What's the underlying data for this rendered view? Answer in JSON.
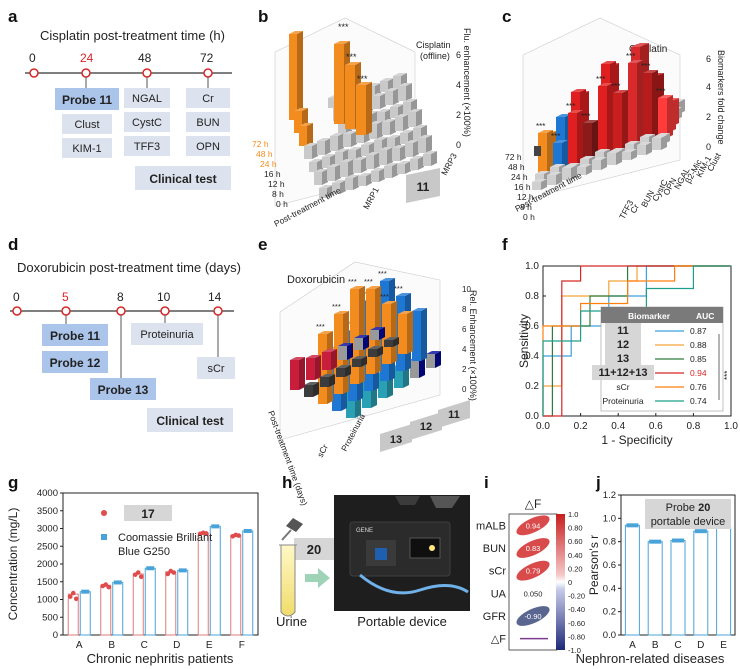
{
  "panel_labels": [
    "a",
    "b",
    "c",
    "d",
    "e",
    "f",
    "g",
    "h",
    "i",
    "j"
  ],
  "panel_a": {
    "title": "Cisplatin post-treatment time (h)",
    "ticks": [
      "0",
      "24",
      "48",
      "72"
    ],
    "columns": [
      [
        "Probe 11",
        "Clust",
        "KIM-1"
      ],
      [
        "NGAL",
        "CystC",
        "TFF3"
      ],
      [
        "Cr",
        "BUN",
        "OPN"
      ]
    ],
    "clinical": "Clinical test"
  },
  "panel_b": {
    "title_lines": [
      "Cisplatin",
      "(offline)"
    ],
    "zlabel": "Flu. enhancement (×100%)",
    "zticks": [
      "0",
      "2",
      "4",
      "6"
    ],
    "ylabel": "Post-treatment time",
    "ytick_labels": [
      "72 h",
      "48 h",
      "24 h",
      "16 h",
      "12 h",
      "8 h",
      "0 h"
    ],
    "x_labels": [
      "MRP1",
      "MRP3"
    ],
    "probe": "11",
    "sig": "***"
  },
  "panel_c": {
    "title": "Cisplatin",
    "zlabel": "Biomarkers fold change",
    "zticks": [
      "0",
      "2",
      "4",
      "6"
    ],
    "ylabel": "Post-treatment time",
    "ytick_labels": [
      "72 h",
      "48 h",
      "24 h",
      "16 h",
      "12 h",
      "8 h",
      "0 h"
    ],
    "markers": [
      "Clust",
      "KIM-1",
      "β2-Mic",
      "NGAL",
      "OPN",
      "CystC",
      "BUN",
      "Cr",
      "TFF3"
    ],
    "sig": "***"
  },
  "panel_d": {
    "title": "Doxorubicin post-treatment time (days)",
    "ticks": [
      "0",
      "5",
      "8",
      "10",
      "14"
    ],
    "boxes": [
      "Probe 11",
      "Probe 12",
      "Probe 13",
      "Proteinuria",
      "sCr"
    ],
    "clinical": "Clinical test"
  },
  "panel_e": {
    "title": "Doxorubicin",
    "zlabel": "Rel. Enhancement (×100%)",
    "zticks": [
      "0",
      "2",
      "4",
      "6",
      "8",
      "10"
    ],
    "ylabel": "Post-treatment time (days)",
    "x_labels": [
      "11",
      "12",
      "13",
      "Proteinuria",
      "sCr"
    ],
    "sig": "***"
  },
  "chart_data": [
    {
      "id": "f",
      "type": "line",
      "title": "",
      "xlabel": "1 - Specificity",
      "ylabel": "Sensitivity",
      "xlim": [
        0,
        1
      ],
      "ylim": [
        0,
        1
      ],
      "xticks": [
        "0.0",
        "0.2",
        "0.4",
        "0.6",
        "0.8",
        "1.0"
      ],
      "yticks": [
        "0.0",
        "0.2",
        "0.4",
        "0.6",
        "0.8",
        "1.0"
      ],
      "legend_header": [
        "Biomarker",
        "AUC"
      ],
      "series": [
        {
          "name": "11",
          "auc": "0.87",
          "color": "#3aa0dd",
          "points": [
            [
              0,
              0
            ],
            [
              0,
              0.4
            ],
            [
              0.15,
              0.4
            ],
            [
              0.15,
              0.6
            ],
            [
              0.35,
              0.6
            ],
            [
              0.35,
              0.8
            ],
            [
              0.55,
              0.8
            ],
            [
              0.55,
              1
            ],
            [
              1,
              1
            ]
          ]
        },
        {
          "name": "12",
          "auc": "0.88",
          "color": "#f2a33a",
          "points": [
            [
              0,
              0
            ],
            [
              0,
              0.2
            ],
            [
              0.1,
              0.2
            ],
            [
              0.1,
              0.8
            ],
            [
              0.35,
              0.8
            ],
            [
              0.35,
              0.9
            ],
            [
              0.5,
              0.9
            ],
            [
              0.5,
              1
            ],
            [
              1,
              1
            ]
          ]
        },
        {
          "name": "13",
          "auc": "0.85",
          "color": "#2f7d3c",
          "points": [
            [
              0,
              0
            ],
            [
              0.05,
              0
            ],
            [
              0.05,
              0.6
            ],
            [
              0.25,
              0.6
            ],
            [
              0.25,
              0.8
            ],
            [
              0.45,
              0.8
            ],
            [
              0.45,
              1
            ],
            [
              1,
              1
            ]
          ]
        },
        {
          "name": "11+12+13",
          "auc": "0.94",
          "color": "#d62728",
          "points": [
            [
              0,
              0
            ],
            [
              0.1,
              0
            ],
            [
              0.1,
              0.9
            ],
            [
              0.2,
              0.9
            ],
            [
              0.2,
              1
            ],
            [
              1,
              1
            ]
          ]
        },
        {
          "name": "sCr",
          "auc": "0.76",
          "color": "#ff7f0e",
          "points": [
            [
              0,
              0
            ],
            [
              0,
              0.6
            ],
            [
              0.2,
              0.6
            ],
            [
              0.2,
              0.75
            ],
            [
              0.45,
              0.75
            ],
            [
              0.45,
              0.9
            ],
            [
              0.7,
              0.9
            ],
            [
              0.7,
              1
            ],
            [
              1,
              1
            ]
          ]
        },
        {
          "name": "Proteinuria",
          "auc": "0.74",
          "color": "#1f9e89",
          "points": [
            [
              0,
              0
            ],
            [
              0,
              0.5
            ],
            [
              0.2,
              0.5
            ],
            [
              0.2,
              0.7
            ],
            [
              0.55,
              0.7
            ],
            [
              0.55,
              0.85
            ],
            [
              0.8,
              0.85
            ],
            [
              0.8,
              1
            ],
            [
              1,
              1
            ]
          ]
        }
      ],
      "sig": "***"
    },
    {
      "id": "g",
      "type": "bar",
      "title": "",
      "xlabel": "Chronic nephritis patients",
      "ylabel": "Concentration (mg/L)",
      "ylim": [
        0,
        4000
      ],
      "yticks": [
        0,
        500,
        1000,
        1500,
        2000,
        2500,
        3000,
        3500,
        4000
      ],
      "categories": [
        "A",
        "B",
        "C",
        "D",
        "E",
        "F"
      ],
      "series": [
        {
          "name": "17",
          "color": "#e07b7b",
          "values": [
            1150,
            1400,
            1720,
            1780,
            2870,
            2810
          ],
          "points": [
            [
              1080,
              1180,
              1020
            ],
            [
              1380,
              1420,
              1350
            ],
            [
              1700,
              1760,
              1640
            ],
            [
              1720,
              1800,
              1760
            ],
            [
              2850,
              2880,
              2860
            ],
            [
              2780,
              2820,
              2800
            ]
          ]
        },
        {
          "name": "Coomassie Brilliant Blue G250",
          "color": "#4aa3d8",
          "values": [
            1220,
            1480,
            1880,
            1820,
            3060,
            2930
          ]
        }
      ],
      "legend": {
        "probe": "17",
        "line1": "Coomassie Brilliant",
        "line2": "Blue G250"
      }
    },
    {
      "id": "i",
      "type": "heatmap",
      "title": "△F",
      "rows": [
        "mALB",
        "BUN",
        "sCr",
        "UA",
        "GFR",
        "△F"
      ],
      "values": [
        0.94,
        0.83,
        0.79,
        0.05,
        -0.9,
        1.0
      ],
      "value_labels": [
        "0.94",
        "0.83",
        "0.79",
        "0.050",
        "-0.90",
        ""
      ],
      "colorbar_ticks": [
        "1.0",
        "0.80",
        "0.60",
        "0.40",
        "0.20",
        "0",
        "-0.20",
        "-0.40",
        "-0.60",
        "-0.80",
        "-1.0"
      ]
    },
    {
      "id": "j",
      "type": "bar",
      "title": "",
      "xlabel": "Nephron-related diseases",
      "ylabel": "Pearson's r",
      "ylim": [
        0,
        1.2
      ],
      "yticks": [
        "0.0",
        "0.2",
        "0.4",
        "0.6",
        "0.8",
        "1.0",
        "1.2"
      ],
      "categories": [
        "A",
        "B",
        "C",
        "D",
        "E"
      ],
      "values": [
        0.94,
        0.8,
        0.81,
        0.89,
        0.93
      ],
      "legend": {
        "line1a": "Probe ",
        "line1b": "20",
        "line2": "portable device"
      }
    }
  ],
  "panel_h": {
    "probe": "20",
    "urine": "Urine",
    "device": "Portable device",
    "screen_text": "GENE"
  }
}
